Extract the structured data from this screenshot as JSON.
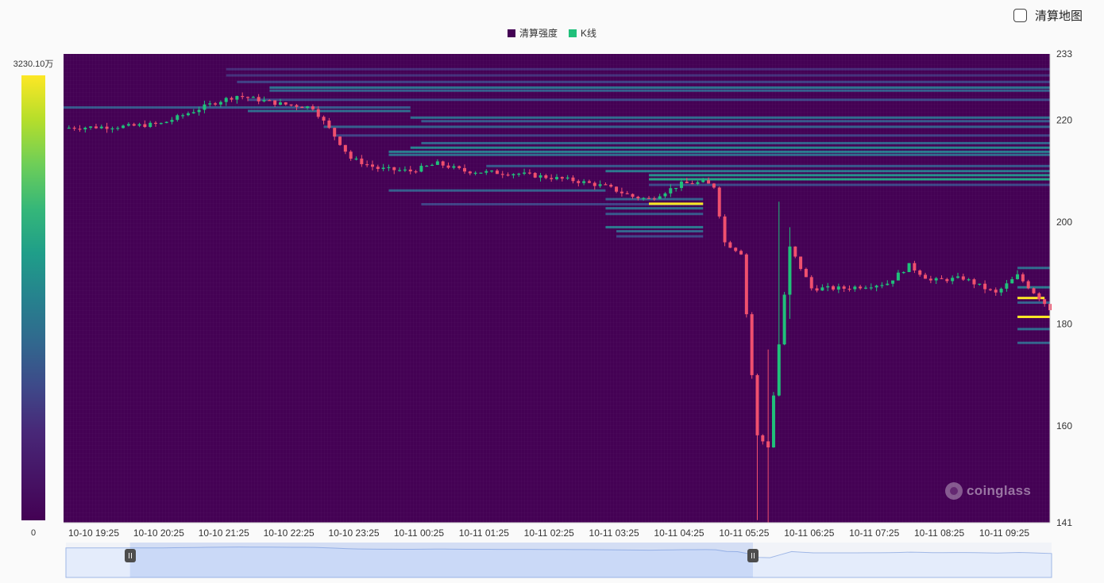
{
  "toggle": {
    "label": "清算地图"
  },
  "legend": [
    {
      "name": "清算强度",
      "color": "#440154"
    },
    {
      "name": "K线",
      "color": "#20c07a"
    }
  ],
  "visual_map": {
    "max_label": "3230.10万",
    "min_label": "0"
  },
  "watermark": "coinglass",
  "chart_data": [
    {
      "type": "heatmap",
      "subtype": "candlestick-with-liquidation-heatmap",
      "x_labels": [
        "10-10 19:25",
        "10-10 20:25",
        "10-10 21:25",
        "10-10 22:25",
        "10-10 23:25",
        "10-11 00:25",
        "10-11 01:25",
        "10-11 02:25",
        "10-11 03:25",
        "10-11 04:25",
        "10-11 05:25",
        "10-11 06:25",
        "10-11 07:25",
        "10-11 08:25",
        "10-11 09:25"
      ],
      "x_range_minutes": [
        0,
        910
      ],
      "y_axis": {
        "min": 141,
        "max": 233,
        "tick_labels": [
          233,
          220,
          200,
          180,
          160,
          141
        ],
        "position": "right"
      },
      "colors": {
        "up": "#20c07a",
        "down": "#f0506e",
        "background": "#440154"
      },
      "ohlc_anchors": [
        [
          0,
          218.5
        ],
        [
          60,
          218.8
        ],
        [
          90,
          219.3
        ],
        [
          140,
          223.5
        ],
        [
          160,
          224.8
        ],
        [
          200,
          223.2
        ],
        [
          230,
          222.5
        ],
        [
          255,
          215.5
        ],
        [
          265,
          212.5
        ],
        [
          290,
          210.5
        ],
        [
          320,
          210.0
        ],
        [
          345,
          211.5
        ],
        [
          370,
          210.0
        ],
        [
          420,
          209.5
        ],
        [
          470,
          208.2
        ],
        [
          500,
          207.0
        ],
        [
          525,
          205.0
        ],
        [
          540,
          204.5
        ],
        [
          570,
          207.5
        ],
        [
          590,
          207.8
        ],
        [
          600,
          207.0
        ],
        [
          610,
          196.0
        ],
        [
          625,
          194.0
        ],
        [
          640,
          158.0
        ],
        [
          650,
          156.0
        ],
        [
          660,
          176.0
        ],
        [
          670,
          195.0
        ],
        [
          690,
          187.0
        ],
        [
          720,
          187.0
        ],
        [
          760,
          188.0
        ],
        [
          780,
          191.5
        ],
        [
          800,
          188.5
        ],
        [
          830,
          189.0
        ],
        [
          860,
          186.0
        ],
        [
          880,
          189.5
        ],
        [
          910,
          183.0
        ]
      ],
      "wick_extremes": [
        {
          "minute": 640,
          "low": 141.5,
          "high": 162
        },
        {
          "minute": 650,
          "low": 141.0,
          "high": 175
        },
        {
          "minute": 660,
          "low": 176,
          "high": 204
        },
        {
          "minute": 670,
          "low": 181,
          "high": 199
        }
      ],
      "liquidation_bands": [
        {
          "price": 230.0,
          "from": 150,
          "to": 910,
          "intensity": 0.12
        },
        {
          "price": 228.8,
          "from": 150,
          "to": 910,
          "intensity": 0.14
        },
        {
          "price": 227.5,
          "from": 160,
          "to": 910,
          "intensity": 0.2
        },
        {
          "price": 226.4,
          "from": 190,
          "to": 910,
          "intensity": 0.38
        },
        {
          "price": 225.8,
          "from": 190,
          "to": 910,
          "intensity": 0.3
        },
        {
          "price": 224.0,
          "from": 170,
          "to": 910,
          "intensity": 0.22
        },
        {
          "price": 222.5,
          "from": 0,
          "to": 320,
          "intensity": 0.28
        },
        {
          "price": 221.8,
          "from": 170,
          "to": 320,
          "intensity": 0.35
        },
        {
          "price": 220.5,
          "from": 320,
          "to": 910,
          "intensity": 0.35
        },
        {
          "price": 219.8,
          "from": 330,
          "to": 910,
          "intensity": 0.28
        },
        {
          "price": 218.7,
          "from": 240,
          "to": 910,
          "intensity": 0.3
        },
        {
          "price": 217.0,
          "from": 250,
          "to": 910,
          "intensity": 0.2
        },
        {
          "price": 215.5,
          "from": 330,
          "to": 910,
          "intensity": 0.32
        },
        {
          "price": 214.6,
          "from": 320,
          "to": 910,
          "intensity": 0.45
        },
        {
          "price": 213.8,
          "from": 300,
          "to": 910,
          "intensity": 0.42
        },
        {
          "price": 213.2,
          "from": 300,
          "to": 910,
          "intensity": 0.36
        },
        {
          "price": 211.0,
          "from": 390,
          "to": 910,
          "intensity": 0.28
        },
        {
          "price": 210.0,
          "from": 500,
          "to": 910,
          "intensity": 0.4
        },
        {
          "price": 209.2,
          "from": 540,
          "to": 910,
          "intensity": 0.5
        },
        {
          "price": 208.4,
          "from": 540,
          "to": 910,
          "intensity": 0.58
        },
        {
          "price": 207.3,
          "from": 540,
          "to": 910,
          "intensity": 0.22
        },
        {
          "price": 206.2,
          "from": 300,
          "to": 500,
          "intensity": 0.3
        },
        {
          "price": 204.5,
          "from": 500,
          "to": 590,
          "intensity": 0.3
        },
        {
          "price": 203.5,
          "from": 330,
          "to": 590,
          "intensity": 0.2
        },
        {
          "price": 202.7,
          "from": 500,
          "to": 590,
          "intensity": 0.35
        },
        {
          "price": 201.6,
          "from": 500,
          "to": 590,
          "intensity": 0.28
        },
        {
          "price": 199.0,
          "from": 500,
          "to": 590,
          "intensity": 0.4
        },
        {
          "price": 198.2,
          "from": 510,
          "to": 590,
          "intensity": 0.32
        },
        {
          "price": 197.2,
          "from": 510,
          "to": 590,
          "intensity": 0.22
        },
        {
          "price": 191.0,
          "from": 880,
          "to": 910,
          "intensity": 0.35
        },
        {
          "price": 187.2,
          "from": 880,
          "to": 910,
          "intensity": 0.4
        },
        {
          "price": 184.2,
          "from": 880,
          "to": 910,
          "intensity": 0.3
        },
        {
          "price": 179.0,
          "from": 880,
          "to": 910,
          "intensity": 0.35
        },
        {
          "price": 176.3,
          "from": 880,
          "to": 910,
          "intensity": 0.32
        }
      ],
      "peak_levels": [
        {
          "price": 203.6,
          "from": 540,
          "to": 590
        },
        {
          "price": 185.1,
          "from": 880,
          "to": 905
        },
        {
          "price": 181.4,
          "from": 880,
          "to": 910
        }
      ],
      "range_slider": {
        "start": 0.065,
        "end": 0.697
      }
    }
  ]
}
